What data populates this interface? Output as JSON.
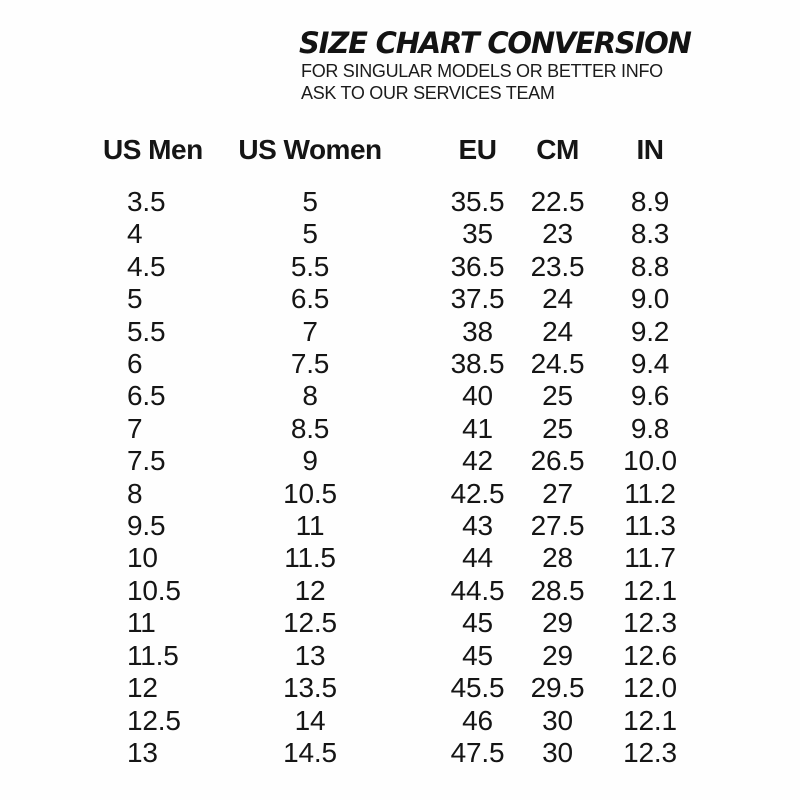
{
  "header": {
    "title": "SIZE CHART CONVERSION",
    "subtitle_line1": "FOR SINGULAR MODELS OR BETTER INFO",
    "subtitle_line2": "ASK TO OUR SERVICES TEAM"
  },
  "chart_data": {
    "type": "table",
    "title": "SIZE CHART CONVERSION",
    "columns": [
      "US Men",
      "US Women",
      "EU",
      "CM",
      "IN"
    ],
    "rows": [
      [
        "3.5",
        "5",
        "35.5",
        "22.5",
        "8.9"
      ],
      [
        "4",
        "5",
        "35",
        "23",
        "8.3"
      ],
      [
        "4.5",
        "5.5",
        "36.5",
        "23.5",
        "8.8"
      ],
      [
        "5",
        "6.5",
        "37.5",
        "24",
        "9.0"
      ],
      [
        "5.5",
        "7",
        "38",
        "24",
        "9.2"
      ],
      [
        "6",
        "7.5",
        "38.5",
        "24.5",
        "9.4"
      ],
      [
        "6.5",
        "8",
        "40",
        "25",
        "9.6"
      ],
      [
        "7",
        "8.5",
        "41",
        "25",
        "9.8"
      ],
      [
        "7.5",
        "9",
        "42",
        "26.5",
        "10.0"
      ],
      [
        "8",
        "10.5",
        "42.5",
        "27",
        "11.2"
      ],
      [
        "9.5",
        "11",
        "43",
        "27.5",
        "11.3"
      ],
      [
        "10",
        "11.5",
        "44",
        "28",
        "11.7"
      ],
      [
        "10.5",
        "12",
        "44.5",
        "28.5",
        "12.1"
      ],
      [
        "11",
        "12.5",
        "45",
        "29",
        "12.3"
      ],
      [
        "11.5",
        "13",
        "45",
        "29",
        "12.6"
      ],
      [
        "12",
        "13.5",
        "45.5",
        "29.5",
        "12.0"
      ],
      [
        "12.5",
        "14",
        "46",
        "30",
        "12.1"
      ],
      [
        "13",
        "14.5",
        "47.5",
        "30",
        "12.3"
      ]
    ]
  },
  "colors": {
    "text": "#151515",
    "background": "#fefefe"
  }
}
